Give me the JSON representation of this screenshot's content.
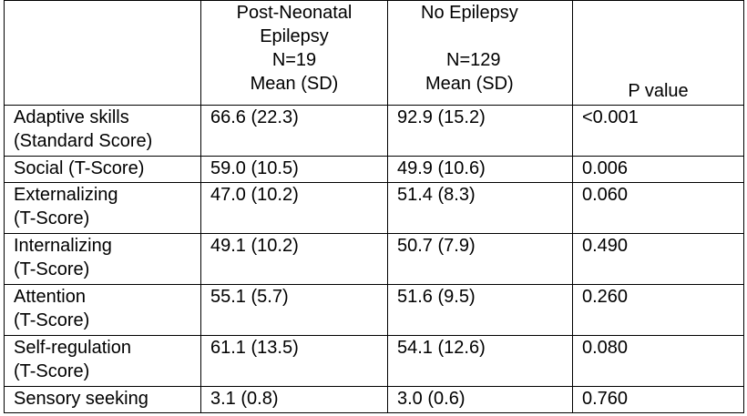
{
  "table": {
    "headers": {
      "group1": [
        "Post-Neonatal",
        "Epilepsy",
        "N=19",
        "Mean (SD)"
      ],
      "group2": [
        "No Epilepsy",
        "",
        "N=129",
        "Mean (SD)"
      ],
      "pvalue": "P value"
    },
    "rows": [
      {
        "label": [
          "Adaptive skills",
          "(Standard Score)"
        ],
        "g1": "66.6 (22.3)",
        "g2": "92.9 (15.2)",
        "p": "<0.001"
      },
      {
        "label": [
          "Social (T-Score)"
        ],
        "g1": "59.0 (10.5)",
        "g2": "49.9 (10.6)",
        "p": "0.006"
      },
      {
        "label": [
          "Externalizing",
          "(T-Score)"
        ],
        "g1": "47.0 (10.2)",
        "g2": "51.4 (8.3)",
        "p": "0.060"
      },
      {
        "label": [
          "Internalizing",
          "(T-Score)"
        ],
        "g1": "49.1 (10.2)",
        "g2": "50.7 (7.9)",
        "p": "0.490"
      },
      {
        "label": [
          "Attention",
          "(T-Score)"
        ],
        "g1": "55.1 (5.7)",
        "g2": "51.6 (9.5)",
        "p": "0.260"
      },
      {
        "label": [
          "Self-regulation",
          "(T-Score)"
        ],
        "g1": "61.1 (13.5)",
        "g2": "54.1 (12.6)",
        "p": "0.080"
      },
      {
        "label": [
          "Sensory seeking"
        ],
        "g1": "3.1 (0.8)",
        "g2": "3.0 (0.6)",
        "p": "0.760"
      }
    ]
  }
}
